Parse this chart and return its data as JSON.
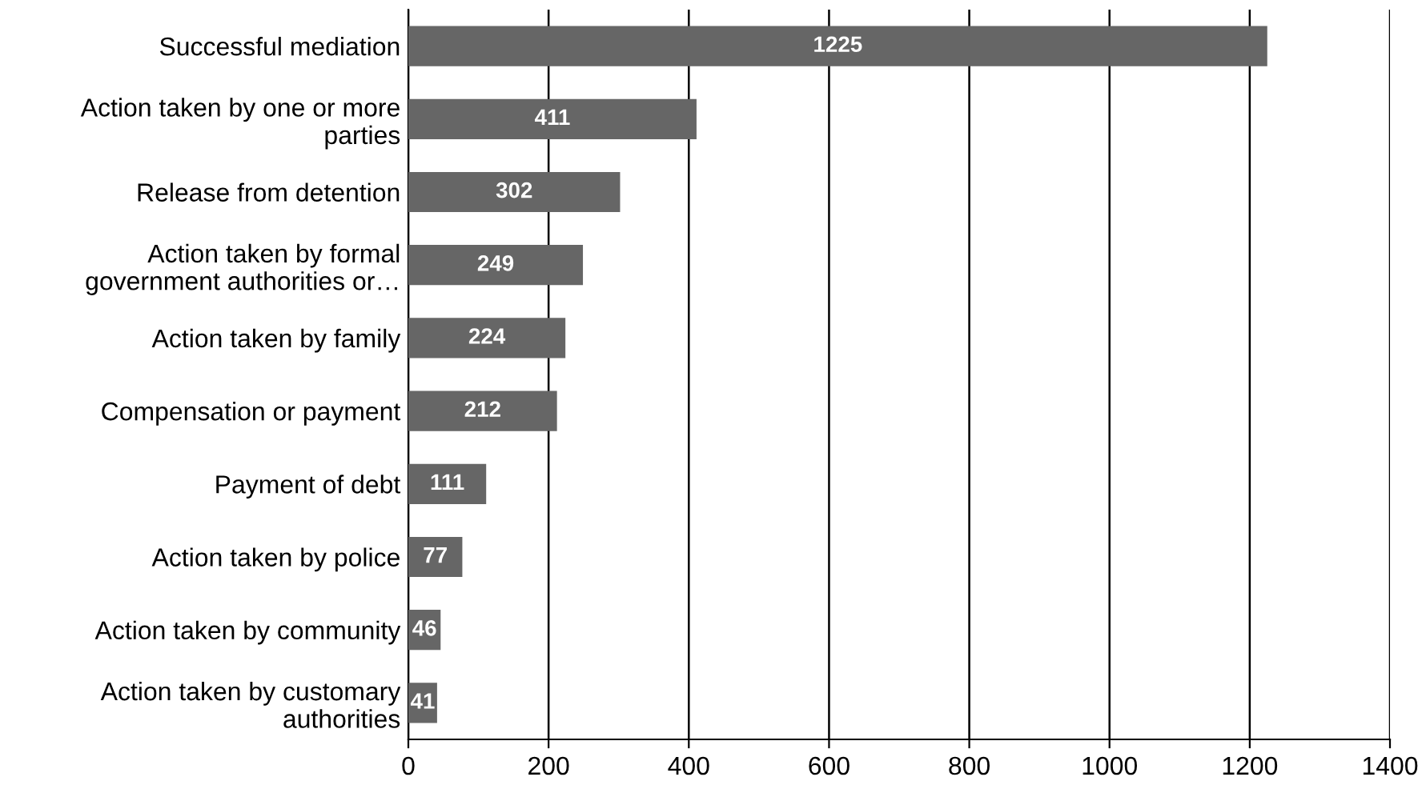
{
  "chart_data": {
    "type": "bar",
    "orientation": "horizontal",
    "categories": [
      "Successful mediation",
      "Action taken by one or more\nparties",
      "Release from detention",
      "Action taken by formal\ngovernment authorities or…",
      "Action taken by family",
      "Compensation or payment",
      "Payment of debt",
      "Action taken by police",
      "Action taken by community",
      "Action taken by customary\nauthorities"
    ],
    "values": [
      1225,
      411,
      302,
      249,
      224,
      212,
      111,
      77,
      46,
      41
    ],
    "color": "#666666",
    "xlim": [
      0,
      1400
    ],
    "xticks": [
      0,
      200,
      400,
      600,
      800,
      1000,
      1200,
      1400
    ],
    "grid": "x",
    "data_labels": true
  }
}
